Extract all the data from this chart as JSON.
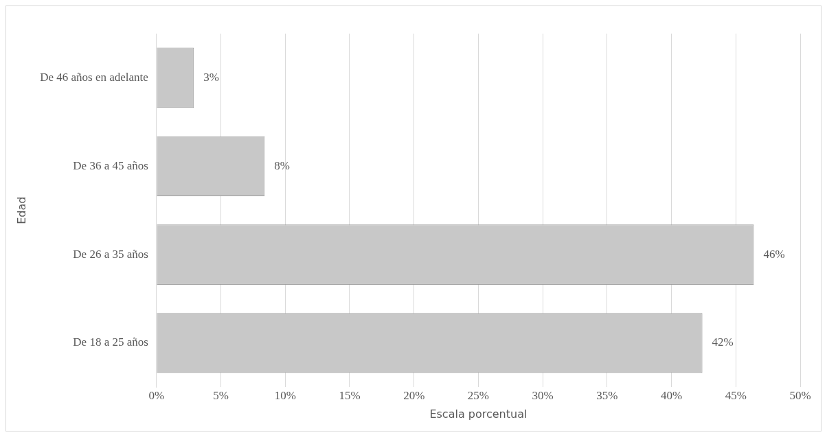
{
  "chart_data": {
    "type": "bar",
    "orientation": "horizontal",
    "xlabel": "Escala porcentual",
    "ylabel": "Edad",
    "categories": [
      "De 46 años en adelante",
      "De 36 a 45 años",
      "De 26 a 35 años",
      "De 18 a 25 años"
    ],
    "values": [
      2.9,
      8.4,
      46.4,
      42.4
    ],
    "value_labels": [
      "3%",
      "8%",
      "46%",
      "42%"
    ],
    "color": "#c8c8c8",
    "xlim": [
      0,
      50
    ],
    "xticks": [
      {
        "value": 0,
        "label": "0%"
      },
      {
        "value": 5,
        "label": "5%"
      },
      {
        "value": 10,
        "label": "10%"
      },
      {
        "value": 15,
        "label": "15%"
      },
      {
        "value": 20,
        "label": "20%"
      },
      {
        "value": 25,
        "label": "25%"
      },
      {
        "value": 30,
        "label": "30%"
      },
      {
        "value": 35,
        "label": "35%"
      },
      {
        "value": 40,
        "label": "40%"
      },
      {
        "value": 45,
        "label": "45%"
      },
      {
        "value": 50,
        "label": "50%"
      }
    ],
    "grid": "x",
    "legend": false
  }
}
